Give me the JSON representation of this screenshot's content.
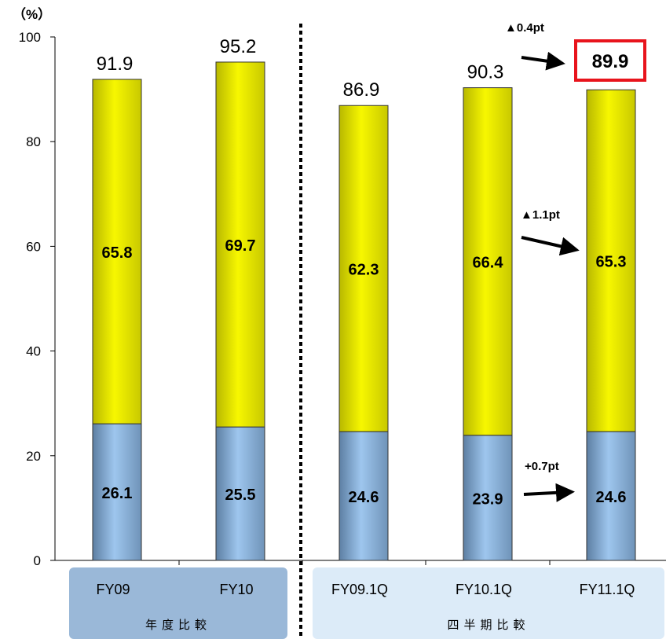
{
  "chart_data": {
    "type": "bar",
    "stacked": true,
    "unit_label": "（%）",
    "ylim": [
      0,
      100
    ],
    "yticks": [
      0,
      20,
      40,
      60,
      80,
      100
    ],
    "categories": [
      "FY09",
      "FY10",
      "FY09.1Q",
      "FY10.1Q",
      "FY11.1Q"
    ],
    "series": [
      {
        "values": [
          26.1,
          25.5,
          24.6,
          23.9,
          24.6
        ],
        "labels": [
          "26.1",
          "25.5",
          "24.6",
          "23.9",
          "24.6"
        ],
        "color": "#9ec6ee"
      },
      {
        "values": [
          65.8,
          69.7,
          62.3,
          66.4,
          65.3
        ],
        "labels": [
          "65.8",
          "69.7",
          "62.3",
          "66.4",
          "65.3"
        ],
        "color": "#f2f200"
      }
    ],
    "totals": [
      "91.9",
      "95.2",
      "86.9",
      "90.3",
      "89.9"
    ],
    "highlight_index": 4,
    "highlight_color": "#e8141c",
    "groups": [
      {
        "label": "年度比較",
        "color": "#9ab8d8"
      },
      {
        "label": "四半期比較",
        "color": "#dcebf8"
      }
    ],
    "annotations": [
      "▲0.4pt",
      "▲1.1pt",
      "+0.7pt"
    ]
  }
}
